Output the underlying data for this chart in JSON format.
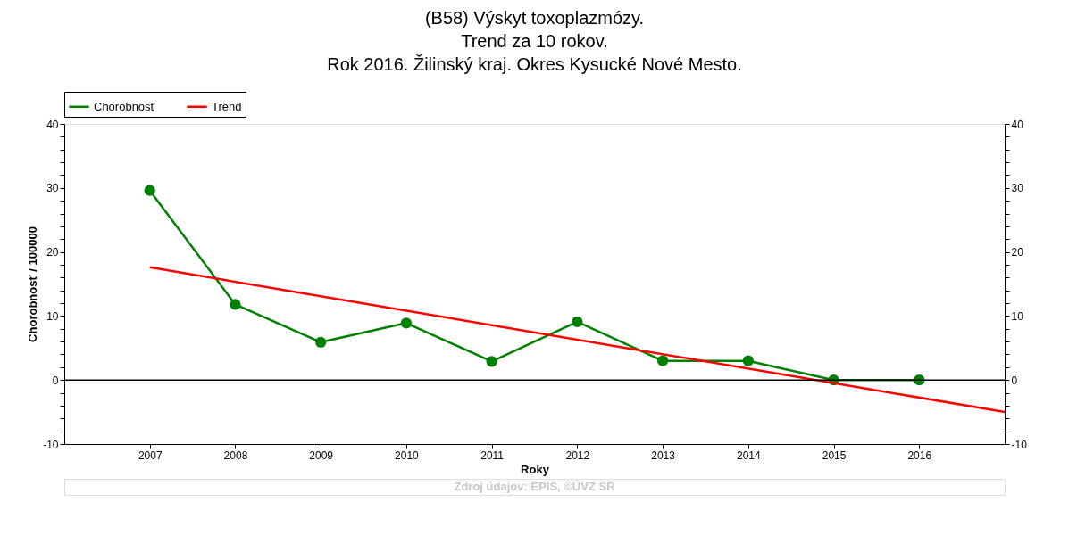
{
  "chart_data": {
    "type": "line",
    "title": "(B58) Výskyt toxoplazmózy.\nTrend za 10 rokov.\nRok 2016. Žilinský kraj. Okres Kysucké Nové Mesto.",
    "xlabel": "Roky",
    "ylabel": "Chorobnosť / 100000",
    "x": [
      2007,
      2008,
      2009,
      2010,
      2011,
      2012,
      2013,
      2014,
      2015,
      2016
    ],
    "xlim": [
      2006,
      2017
    ],
    "xticks": [
      2007,
      2008,
      2009,
      2010,
      2011,
      2012,
      2013,
      2014,
      2015,
      2016
    ],
    "ylim": [
      -10,
      40
    ],
    "yticks": [
      -10,
      {
        "value": -8,
        "label": null
      },
      {
        "value": -6,
        "label": null
      },
      {
        "value": -4,
        "label": null
      },
      {
        "value": -2,
        "label": null
      },
      0,
      {
        "value": 2,
        "label": null
      },
      {
        "value": 4,
        "label": null
      },
      {
        "value": 6,
        "label": null
      },
      {
        "value": 8,
        "label": null
      },
      10,
      {
        "value": 12,
        "label": null
      },
      {
        "value": 14,
        "label": null
      },
      {
        "value": 16,
        "label": null
      },
      {
        "value": 18,
        "label": null
      },
      20,
      {
        "value": 22,
        "label": null
      },
      {
        "value": 24,
        "label": null
      },
      {
        "value": 26,
        "label": null
      },
      {
        "value": 28,
        "label": null
      },
      30,
      {
        "value": 32,
        "label": null
      },
      {
        "value": 34,
        "label": null
      },
      {
        "value": 36,
        "label": null
      },
      {
        "value": 38,
        "label": null
      },
      40
    ],
    "y2lim": [
      -10,
      40
    ],
    "y2ticks": [
      -10,
      {
        "value": -8,
        "label": null
      },
      {
        "value": -6,
        "label": null
      },
      {
        "value": -4,
        "label": null
      },
      {
        "value": -2,
        "label": null
      },
      0,
      {
        "value": 2,
        "label": null
      },
      {
        "value": 4,
        "label": null
      },
      {
        "value": 6,
        "label": null
      },
      {
        "value": 8,
        "label": null
      },
      10,
      {
        "value": 12,
        "label": null
      },
      {
        "value": 14,
        "label": null
      },
      {
        "value": 16,
        "label": null
      },
      {
        "value": 18,
        "label": null
      },
      20,
      {
        "value": 22,
        "label": null
      },
      {
        "value": 24,
        "label": null
      },
      {
        "value": 26,
        "label": null
      },
      {
        "value": 28,
        "label": null
      },
      30,
      {
        "value": 32,
        "label": null
      },
      {
        "value": 34,
        "label": null
      },
      {
        "value": 36,
        "label": null
      },
      {
        "value": 38,
        "label": null
      },
      40
    ],
    "series": [
      {
        "name": "Chorobnosť",
        "color": "#008000",
        "marker": "circle",
        "values": [
          29.6,
          11.8,
          5.9,
          8.9,
          2.9,
          9.1,
          3.0,
          3.0,
          0,
          0
        ]
      },
      {
        "name": "Trend",
        "type": "line",
        "color": "#ff0000",
        "marker": "none",
        "x": [
          2007,
          2017
        ],
        "values": [
          17.6,
          -5.0
        ]
      }
    ],
    "ref_lines": [
      {
        "axis": "y",
        "value": 0,
        "color": "#000000",
        "line_style": "solid"
      }
    ],
    "legend": "top left",
    "grid": false,
    "line_style": "solid",
    "annotations": [
      "Zdroj údajov: EPIS, ©ÚVZ SR"
    ]
  }
}
